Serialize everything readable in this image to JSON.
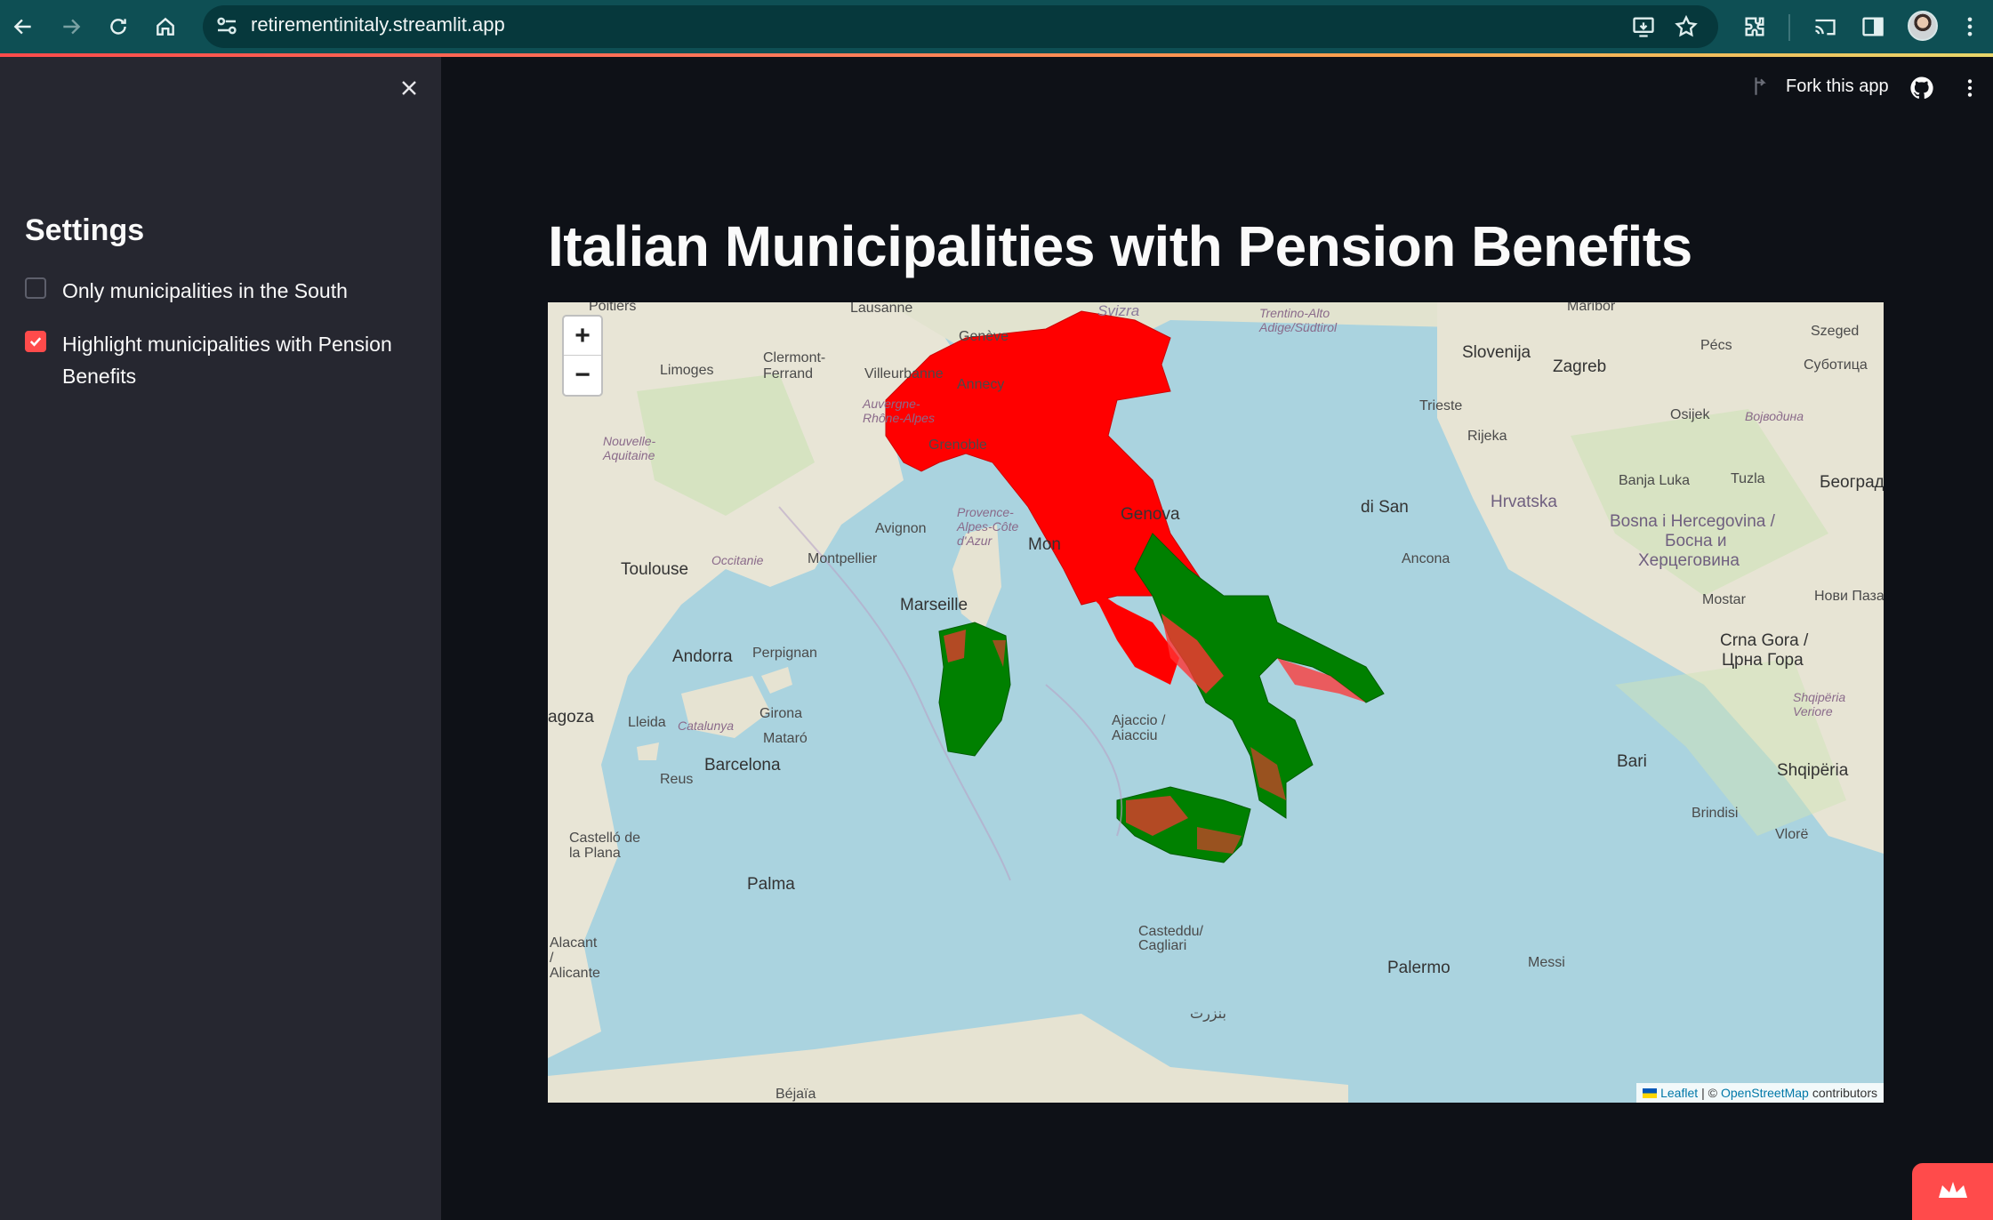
{
  "browser": {
    "url": "retirementinitaly.streamlit.app"
  },
  "sidebar": {
    "title": "Settings",
    "options": [
      {
        "label": "Only municipalities in the South",
        "checked": false
      },
      {
        "label": "Highlight municipalities with Pension Benefits",
        "checked": true
      }
    ]
  },
  "header": {
    "fork_label": "Fork this app"
  },
  "main": {
    "title": "Italian Municipalities with Pension Benefits"
  },
  "map": {
    "zoom_in": "+",
    "zoom_out": "−",
    "attribution": {
      "leaflet": "Leaflet",
      "separator": "| ©",
      "osm": "OpenStreetMap",
      "suffix": "contributors"
    },
    "colors": {
      "no_benefit": "#ff0000",
      "benefit": "#008000",
      "sea": "#aad3df"
    },
    "places": {
      "poitiers": "Poitiers",
      "lausanne": "Lausanne",
      "svizzera": "Svizra",
      "trentino": "Trentino-Alto Adige/Südtirol",
      "maribor": "Maribor",
      "geneve": "Genève",
      "limoges": "Limoges",
      "clermont": "Clermont-Ferrand",
      "villeurbanne": "Villeurbanne",
      "annecy": "Annecy",
      "auvergne": "Auvergne-Rhône-Alpes",
      "grenoble": "Grenoble",
      "nouvelle": "Nouvelle-Aquitaine",
      "slovenija": "Slovenija",
      "zagreb": "Zagreb",
      "pecs": "Pécs",
      "szeged": "Szeged",
      "subotica": "Суботица",
      "trieste": "Trieste",
      "rijeka": "Rijeka",
      "osijek": "Osijek",
      "vojvodina": "Војводина",
      "hrvatska": "Hrvatska",
      "banjaluka": "Banja Luka",
      "tuzla": "Tuzla",
      "beograd": "Београд",
      "bosna": "Bosna i Hercegovina /",
      "bosna2": "Босна и",
      "bosna3": "Херцеговина",
      "provence": "Provence-Alpes-Côte d'Azur",
      "avignon": "Avignon",
      "montpellier": "Montpellier",
      "toulouse": "Toulouse",
      "occitanie": "Occitanie",
      "marseille": "Marseille",
      "genova": "Genova",
      "monaco": "Mon",
      "sanmarino": "di San",
      "ancona": "Ancona",
      "mostar": "Mostar",
      "novipazar": "Нови Пазар",
      "crnagora": "Crna Gora /",
      "crnagora2": "Црна Гора",
      "andorra": "Andorra",
      "perpignan": "Perpignan",
      "ajaccio": "Ajaccio / Aiacciu",
      "girona": "Girona",
      "lleida": "Lleida",
      "catalunya": "Catalunya",
      "mataro": "Mataró",
      "barcelona": "Barcelona",
      "reus": "Reus",
      "bari": "Bari",
      "brindisi": "Brindisi",
      "shqiperia": "Shqipëria",
      "shqiperia2": "Shqipëria Veriore",
      "vlore": "Vlorë",
      "castello": "Castelló de la Plana",
      "palma": "Palma",
      "cagliari": "Casteddu/ Cagliari",
      "palermo": "Palermo",
      "messina": "Messi",
      "alacant": "Alacant / Alicante",
      "zaragoza": "agoza",
      "bejaia": "Béjaïa",
      "bizerte": "بنزرت"
    }
  }
}
